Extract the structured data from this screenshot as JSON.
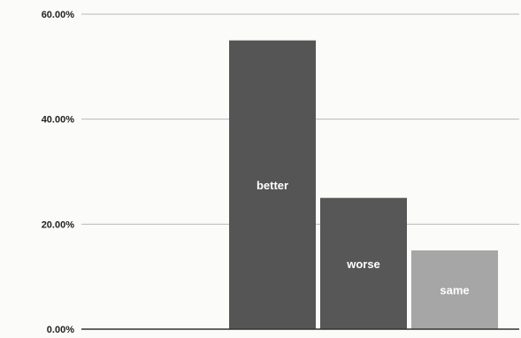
{
  "chart_data": {
    "type": "bar",
    "categories": [
      "better",
      "worse",
      "same"
    ],
    "values": [
      55.0,
      25.0,
      15.0
    ],
    "value_unit": "%",
    "ylim": [
      0,
      60
    ],
    "ytick_values": [
      0,
      20,
      40,
      60
    ],
    "ytick_labels": [
      "0.00%",
      "20.00%",
      "40.00%",
      "60.00%"
    ],
    "title": "",
    "xlabel": "",
    "ylabel": "",
    "grid": true,
    "legend": "none",
    "bar_colors": [
      "#555555",
      "#575757",
      "#a6a6a6"
    ],
    "label_position": "inside bar"
  }
}
